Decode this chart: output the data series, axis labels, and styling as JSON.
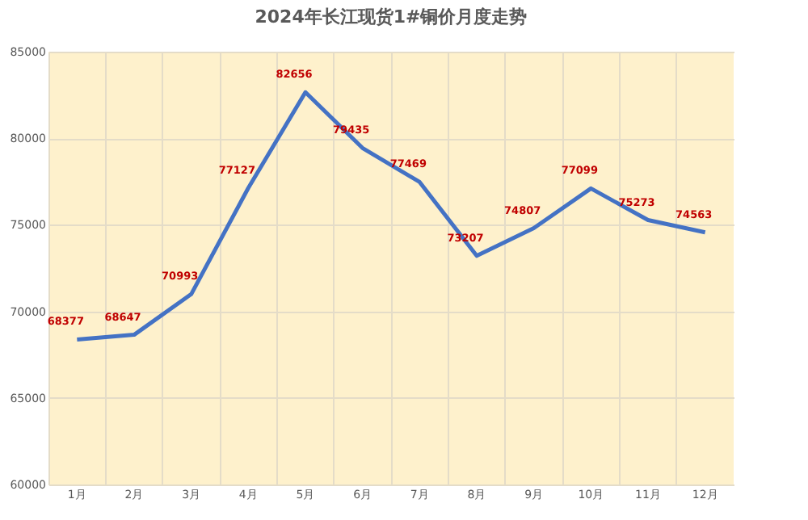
{
  "chart_data": {
    "type": "line",
    "title": "2024年长江现货1#铜价月度走势",
    "categories": [
      "1月",
      "2月",
      "3月",
      "4月",
      "5月",
      "6月",
      "7月",
      "8月",
      "9月",
      "10月",
      "11月",
      "12月"
    ],
    "series": [
      {
        "color": "#4472c4",
        "values": [
          68377,
          68647,
          70993,
          77127,
          82656,
          79435,
          77469,
          73207,
          74807,
          77099,
          75273,
          74563
        ]
      }
    ],
    "ylim": [
      60000,
      85000
    ],
    "yticks": [
      60000,
      65000,
      70000,
      75000,
      80000,
      85000
    ],
    "grid": true,
    "data_labels": true,
    "marker": "none",
    "line_style": "solid",
    "legend": false
  }
}
